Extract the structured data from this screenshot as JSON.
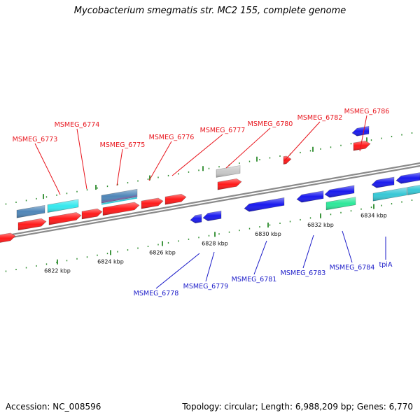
{
  "title": "Mycobacterium smegmatis str. MC2 155, complete genome",
  "footer": {
    "accession": "Accession: NC_008596",
    "summary": "Topology: circular; Length: 6,988,209 bp; Genes: 6,770"
  },
  "colors": {
    "forward_label": "#e8141c",
    "reverse_label": "#1a1ac8",
    "forward_gene": "#ff1a1a",
    "reverse_gene": "#1a1aee",
    "cyan_gene": "#35e8ee",
    "steel_gene": "#4f86b8",
    "green_gene": "#2de89a",
    "teal_gene": "#37c8d6",
    "grey_gene": "#c8c8c8",
    "tick": "#2a8a2a",
    "backbone": "#8a8a8a"
  },
  "ticks": [
    {
      "label": "6822 kbp"
    },
    {
      "label": "6824 kbp"
    },
    {
      "label": "6826 kbp"
    },
    {
      "label": "6828 kbp"
    },
    {
      "label": "6830 kbp"
    },
    {
      "label": "6832 kbp"
    },
    {
      "label": "6834 kbp"
    }
  ],
  "forward_labels": [
    {
      "name": "MSMEG_6773"
    },
    {
      "name": "MSMEG_6774"
    },
    {
      "name": "MSMEG_6775"
    },
    {
      "name": "MSMEG_6776"
    },
    {
      "name": "MSMEG_6777"
    },
    {
      "name": "MSMEG_6780"
    },
    {
      "name": "MSMEG_6782"
    },
    {
      "name": "MSMEG_6786"
    }
  ],
  "reverse_labels": [
    {
      "name": "MSMEG_6778"
    },
    {
      "name": "MSMEG_6779"
    },
    {
      "name": "MSMEG_6781"
    },
    {
      "name": "MSMEG_6783"
    },
    {
      "name": "MSMEG_6784"
    },
    {
      "name": "tpiA"
    }
  ]
}
